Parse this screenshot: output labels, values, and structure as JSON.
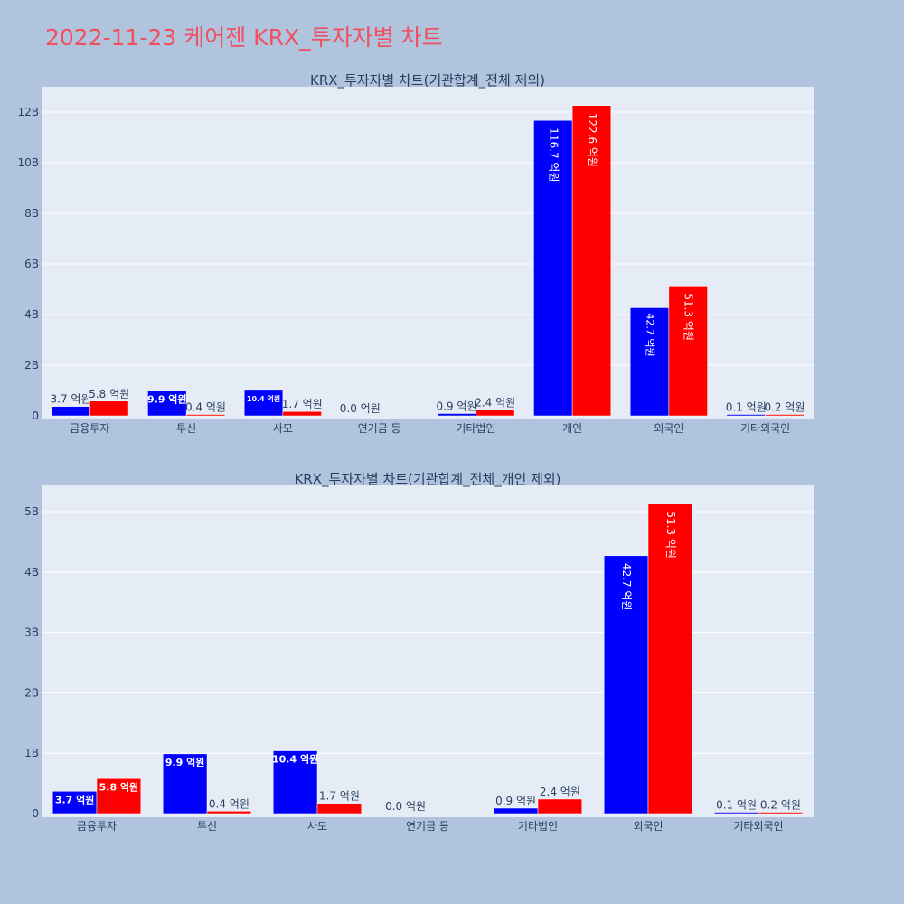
{
  "page_title": "2022-11-23 케어젠 KRX_투자자별 차트",
  "colors": {
    "series_a": "#0000ff",
    "series_b": "#ff0000",
    "plot_bg": "#e5ecf6",
    "page_bg": "#b0c4de",
    "title": "#f05060"
  },
  "chart_data": [
    {
      "type": "bar",
      "title": "KRX_투자자별 차트(기관합계_전체 제외)",
      "categories": [
        "금융투자",
        "투신",
        "사모",
        "연기금 등",
        "기타법인",
        "개인",
        "외국인",
        "기타외국인"
      ],
      "yticks": [
        0,
        2,
        4,
        6,
        8,
        10,
        12
      ],
      "ytick_labels": [
        "0",
        "2B",
        "4B",
        "6B",
        "8B",
        "10B",
        "12B"
      ],
      "ylim": [
        0,
        13.0
      ],
      "series": [
        {
          "values": [
            0.37,
            0.99,
            1.04,
            0.0,
            0.09,
            11.67,
            4.27,
            0.01
          ],
          "labels": [
            "3.7 억원",
            "9.9 억원",
            "10.4 억원",
            "0.0 억원",
            "0.9 억원",
            "116.7 억원",
            "42.7 억원",
            "0.1 억원"
          ]
        },
        {
          "values": [
            0.58,
            0.04,
            0.17,
            0.0,
            0.24,
            12.26,
            5.13,
            0.02
          ],
          "labels": [
            "5.8 억원",
            "0.4 억원",
            "1.7 억원",
            "",
            "2.4 억원",
            "122.6 억원",
            "51.3 억원",
            "0.2 억원"
          ]
        }
      ]
    },
    {
      "type": "bar",
      "title": "KRX_투자자별 차트(기관합계_전체_개인 제외)",
      "categories": [
        "금융투자",
        "투신",
        "사모",
        "연기금 등",
        "기타법인",
        "외국인",
        "기타외국인"
      ],
      "yticks": [
        0,
        1,
        2,
        3,
        4,
        5
      ],
      "ytick_labels": [
        "0",
        "1B",
        "2B",
        "3B",
        "4B",
        "5B"
      ],
      "ylim": [
        0,
        5.45
      ],
      "series": [
        {
          "values": [
            0.37,
            0.99,
            1.04,
            0.0,
            0.09,
            4.27,
            0.01
          ],
          "labels": [
            "3.7 억원",
            "9.9 억원",
            "10.4 억원",
            "0.0 억원",
            "0.9 억원",
            "42.7 억원",
            "0.1 억원"
          ]
        },
        {
          "values": [
            0.58,
            0.04,
            0.17,
            0.0,
            0.24,
            5.13,
            0.02
          ],
          "labels": [
            "5.8 억원",
            "0.4 억원",
            "1.7 억원",
            "",
            "2.4 억원",
            "51.3 억원",
            "0.2 억원"
          ]
        }
      ]
    }
  ]
}
